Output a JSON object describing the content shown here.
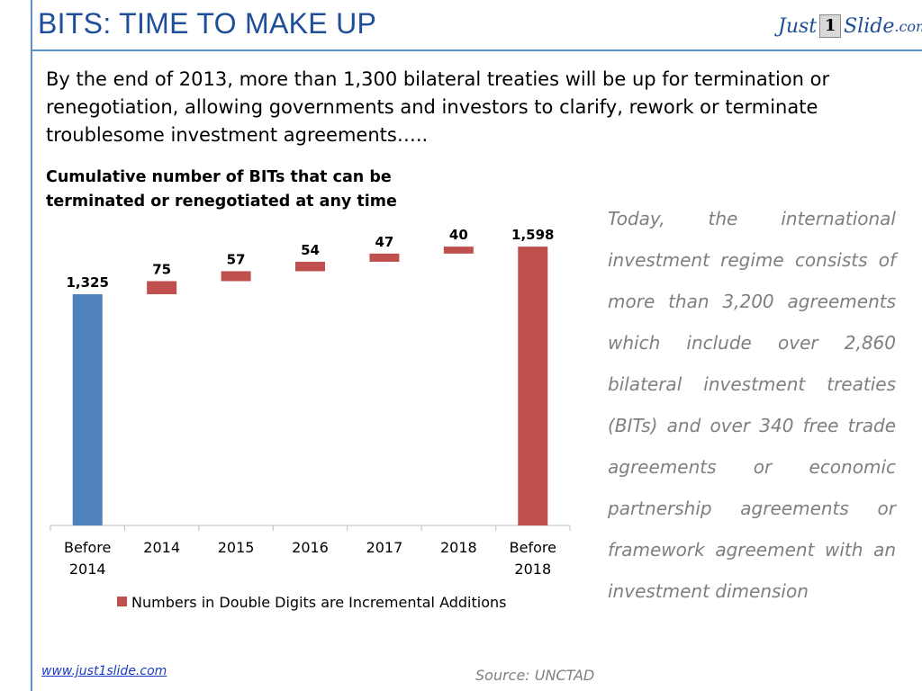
{
  "header": {
    "title": "BITS: TIME TO MAKE UP",
    "logo": {
      "part1": "Just",
      "part2": "1",
      "part3": "Slide",
      "part4": ".com"
    }
  },
  "intro_text": "By the end of 2013, more than 1,300 bilateral treaties will be up for termination or renegotiation, allowing governments and investors to clarify, rework or terminate troublesome investment agreements…..",
  "chart_title": "Cumulative number of BITs that can be terminated or renegotiated at any time",
  "side_text": "Today, the international investment regime consists of more than 3,200 agreements which include over 2,860 bilateral investment treaties (BITs) and over 340 free trade agreements or economic partnership agreements or framework agreement with an investment dimension",
  "source": "Source: UNCTAD",
  "website": "www.just1slide.com",
  "colors": {
    "accent": "#1f4e99",
    "line": "#5b8fc9",
    "total_bar": "#4f81bd",
    "increment_bar": "#c0504d",
    "side_text": "#7f7f7f"
  },
  "chart_data": {
    "type": "bar",
    "subtype": "waterfall",
    "categories": [
      [
        "Before",
        "2014"
      ],
      [
        "2014"
      ],
      [
        "2015"
      ],
      [
        "2016"
      ],
      [
        "2017"
      ],
      [
        "2018"
      ],
      [
        "Before",
        "2018"
      ]
    ],
    "values": [
      1325,
      75,
      57,
      54,
      47,
      40,
      1598
    ],
    "data_labels": [
      "1,325",
      "75",
      "57",
      "54",
      "47",
      "40",
      "1,598"
    ],
    "bar_kind": [
      "total",
      "increment",
      "increment",
      "increment",
      "increment",
      "increment",
      "total"
    ],
    "ylim": [
      0,
      1650
    ],
    "legend": {
      "position": "bottom",
      "label": "Numbers in Double Digits are Incremental Additions",
      "color": "#c0504d"
    },
    "grid": false
  }
}
